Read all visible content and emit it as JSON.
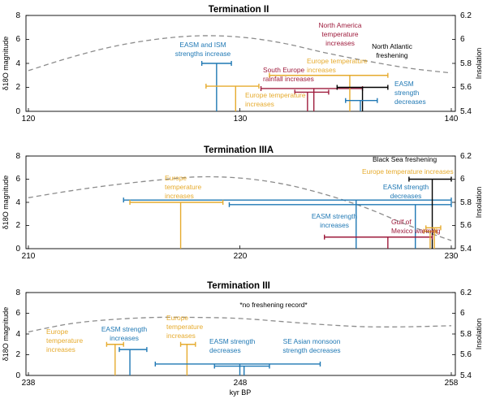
{
  "colors": {
    "easm": "#1f78b4",
    "europe": "#e6ab2e",
    "southern": "#9e1b3c",
    "freshening": "#000000",
    "insolation": "#8c8c8c"
  },
  "chart_data": [
    {
      "type": "range-bars",
      "title": "Termination II",
      "xlim": [
        120,
        140
      ],
      "xticks": [
        120,
        130,
        140
      ],
      "ylim": [
        0,
        8
      ],
      "yticks": [
        0,
        2,
        4,
        6,
        8
      ],
      "y2lim": [
        5.4,
        6.2
      ],
      "y2ticks": [
        "5.4",
        "5.6",
        "5.8",
        "6",
        "6.2"
      ],
      "ylabel": "δ18O magnitude",
      "y2label": "Insolation",
      "insolation": {
        "x": [
          120,
          122,
          124,
          126,
          128,
          130,
          132,
          134,
          136,
          138,
          140
        ],
        "y": [
          5.74,
          5.85,
          5.94,
          6.0,
          6.03,
          6.02,
          5.97,
          5.89,
          5.82,
          5.76,
          5.72
        ]
      },
      "events": [
        {
          "color": "easm",
          "start": 128.2,
          "end": 129.6,
          "peak": 128.9,
          "magnitude": 4.0
        },
        {
          "color": "europe",
          "start": 128.4,
          "end": 130.9,
          "peak": 129.8,
          "magnitude": 2.1
        },
        {
          "color": "southern",
          "start": 131.0,
          "end": 135.8,
          "peak": 133.5,
          "magnitude": 1.9
        },
        {
          "color": "southern",
          "start": 132.6,
          "end": 134.2,
          "peak": 133.2,
          "magnitude": 1.6
        },
        {
          "color": "europe",
          "start": 131.4,
          "end": 137.0,
          "peak": 135.2,
          "magnitude": 3.0
        },
        {
          "color": "freshening",
          "start": 134.6,
          "end": 137.0,
          "peak": 135.8,
          "magnitude": 2.0
        },
        {
          "color": "easm",
          "start": 135.0,
          "end": 136.5,
          "peak": 135.7,
          "magnitude": 0.9
        }
      ],
      "annotations": [
        {
          "text": "EASM and ISM strengths increase",
          "color": "easm"
        },
        {
          "text": "North America temperature increases",
          "color": "southern"
        },
        {
          "text": "North Atlantic freshening",
          "color": "freshening"
        },
        {
          "text": "Europe temperature increases",
          "color": "europe"
        },
        {
          "text": "South Europe rainfall increases",
          "color": "southern"
        },
        {
          "text": "Europe temperature increases",
          "color": "europe"
        },
        {
          "text": "EASM strength decreases",
          "color": "easm"
        }
      ]
    },
    {
      "type": "range-bars",
      "title": "Termination IIIA",
      "xlim": [
        210,
        230
      ],
      "xticks": [
        210,
        220,
        230
      ],
      "ylim": [
        0,
        8
      ],
      "yticks": [
        0,
        2,
        4,
        6,
        8
      ],
      "y2lim": [
        5.4,
        6.2
      ],
      "y2ticks": [
        "5.4",
        "5.6",
        "5.8",
        "6",
        "6.2"
      ],
      "ylabel": "δ18O magnitude",
      "y2label": "Insolation",
      "insolation": {
        "x": [
          210,
          212,
          214,
          216,
          218,
          220,
          222,
          224,
          226,
          228,
          230
        ],
        "y": [
          5.84,
          5.9,
          5.95,
          5.99,
          6.02,
          6.01,
          5.96,
          5.87,
          5.75,
          5.6,
          5.47
        ]
      },
      "events": [
        {
          "color": "easm",
          "start": 214.5,
          "end": 230.0,
          "peak": 225.5,
          "magnitude": 4.2
        },
        {
          "color": "europe",
          "start": 214.8,
          "end": 219.2,
          "peak": 217.2,
          "magnitude": 4.0
        },
        {
          "color": "easm",
          "start": 219.5,
          "end": 230.0,
          "peak": 228.3,
          "magnitude": 3.8
        },
        {
          "color": "freshening",
          "start": 228.0,
          "end": 230.0,
          "peak": 229.1,
          "magnitude": 6.0
        },
        {
          "color": "southern",
          "start": 224.0,
          "end": 229.1,
          "peak": 227.0,
          "magnitude": 1.0
        },
        {
          "color": "europe",
          "start": 228.8,
          "end": 229.5,
          "peak": 229.2,
          "magnitude": 1.8
        },
        {
          "color": "europe",
          "start": 228.7,
          "end": 229.3,
          "peak": 229.0,
          "magnitude": 1.5
        }
      ],
      "annotations": [
        {
          "text": "Black Sea freshening",
          "color": "freshening"
        },
        {
          "text": "Europe temperature increases",
          "color": "europe"
        },
        {
          "text": "Europe temperature increases",
          "color": "europe"
        },
        {
          "text": "EASM strength decreases",
          "color": "easm"
        },
        {
          "text": "EASM strength increases",
          "color": "easm"
        },
        {
          "text": "Gulf of Mexico warming",
          "color": "southern"
        }
      ]
    },
    {
      "type": "range-bars",
      "title": "Termination III",
      "xlim": [
        238,
        258
      ],
      "xticks": [
        238,
        248,
        258
      ],
      "ylim": [
        0,
        8
      ],
      "yticks": [
        0,
        2,
        4,
        6,
        8
      ],
      "y2lim": [
        5.4,
        6.2
      ],
      "y2ticks": [
        "5.4",
        "5.6",
        "5.8",
        "6",
        "6.2"
      ],
      "ylabel": "δ18O magnitude",
      "y2label": "Insolation",
      "xlabel": "kyr BP",
      "insolation": {
        "x": [
          238,
          240,
          242,
          244,
          246,
          248,
          250,
          252,
          254,
          256,
          258
        ],
        "y": [
          5.82,
          5.9,
          5.94,
          5.96,
          5.96,
          5.95,
          5.92,
          5.89,
          5.87,
          5.87,
          5.88
        ]
      },
      "events": [
        {
          "color": "europe",
          "start": 241.7,
          "end": 242.5,
          "peak": 242.1,
          "magnitude": 3.0
        },
        {
          "color": "easm",
          "start": 242.3,
          "end": 243.6,
          "peak": 242.8,
          "magnitude": 2.5
        },
        {
          "color": "europe",
          "start": 245.2,
          "end": 245.9,
          "peak": 245.5,
          "magnitude": 3.0
        },
        {
          "color": "easm",
          "start": 244.0,
          "end": 251.8,
          "peak": 248.0,
          "magnitude": 1.1
        },
        {
          "color": "easm",
          "start": 246.8,
          "end": 249.4,
          "peak": 248.2,
          "magnitude": 0.9
        }
      ],
      "annotations": [
        {
          "text": "*no freshening record*",
          "color": "freshening"
        },
        {
          "text": "Europe temperature increases",
          "color": "europe"
        },
        {
          "text": "EASM strength increases",
          "color": "easm"
        },
        {
          "text": "Europe temperature increases",
          "color": "europe"
        },
        {
          "text": "EASM strength decreases",
          "color": "easm"
        },
        {
          "text": "SE Asian monsoon strength decreases",
          "color": "easm"
        }
      ]
    }
  ]
}
